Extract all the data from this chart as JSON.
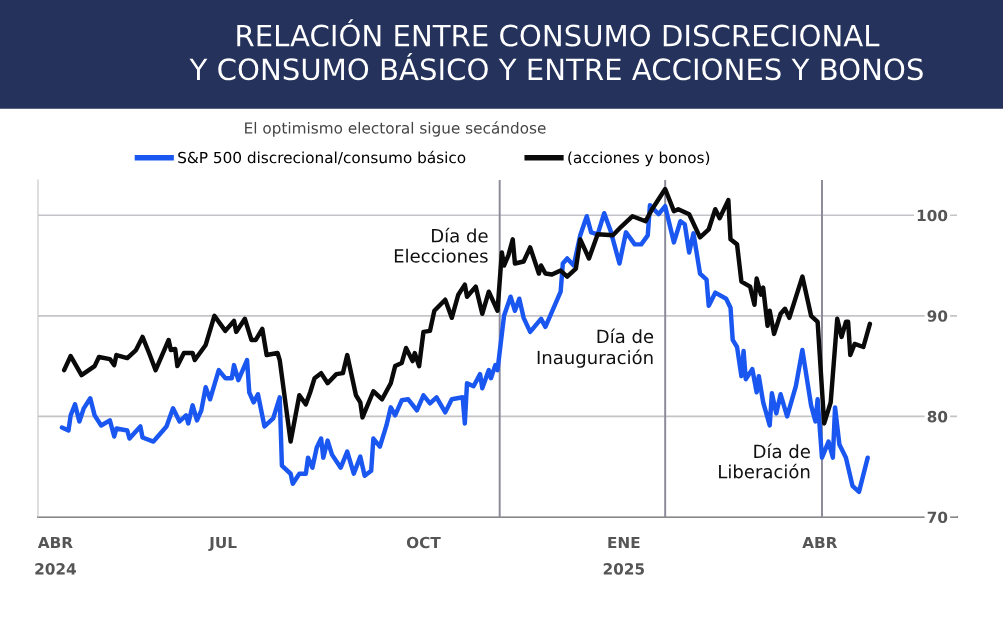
{
  "chart_data": {
    "type": "line",
    "title": "RELACIÓN ENTRE CONSUMO DISCRECIONAL\nY CONSUMO BÁSICO Y ENTRE ACCIONES Y BONOS",
    "subtitle": "El optimismo electoral sigue secándose",
    "series": [
      {
        "name": "S&P 500 discrecional/consumo básico",
        "color": "#1a56f0",
        "x": [
          "2024-04-18",
          "2024-04-21",
          "2024-04-22",
          "2024-04-24",
          "2024-04-26",
          "2024-04-28",
          "2024-05-01",
          "2024-05-03",
          "2024-05-06",
          "2024-05-10",
          "2024-05-12",
          "2024-05-13",
          "2024-05-18",
          "2024-05-19",
          "2024-05-24",
          "2024-05-25",
          "2024-05-30",
          "2024-06-05",
          "2024-06-08",
          "2024-06-11",
          "2024-06-14",
          "2024-06-15",
          "2024-06-17",
          "2024-06-19",
          "2024-06-21",
          "2024-06-23",
          "2024-06-25",
          "2024-06-29",
          "2024-07-02",
          "2024-07-05",
          "2024-07-06",
          "2024-07-08",
          "2024-07-12",
          "2024-07-13",
          "2024-07-15",
          "2024-07-17",
          "2024-07-20",
          "2024-07-24",
          "2024-07-27",
          "2024-07-28",
          "2024-08-01",
          "2024-08-02",
          "2024-08-05",
          "2024-08-08",
          "2024-08-09",
          "2024-08-11",
          "2024-08-13",
          "2024-08-15",
          "2024-08-16",
          "2024-08-18",
          "2024-08-20",
          "2024-08-24",
          "2024-08-27",
          "2024-08-30",
          "2024-09-02",
          "2024-09-04",
          "2024-09-07",
          "2024-09-08",
          "2024-09-11",
          "2024-09-14",
          "2024-09-16",
          "2024-09-18",
          "2024-09-21",
          "2024-09-24",
          "2024-09-28",
          "2024-10-01",
          "2024-10-04",
          "2024-10-07",
          "2024-10-11",
          "2024-10-14",
          "2024-10-19",
          "2024-10-20",
          "2024-10-21",
          "2024-10-24",
          "2024-10-27",
          "2024-10-28",
          "2024-10-31",
          "2024-11-01",
          "2024-11-03",
          "2024-11-04",
          "2024-11-07",
          "2024-11-10",
          "2024-11-12",
          "2024-11-14",
          "2024-11-16",
          "2024-11-19",
          "2024-11-24",
          "2024-11-26",
          "2024-12-03",
          "2024-12-04",
          "2024-12-06",
          "2024-12-09",
          "2024-12-12",
          "2024-12-15",
          "2024-12-17",
          "2024-12-20",
          "2024-12-23",
          "2024-12-26",
          "2024-12-30",
          "2025-01-02",
          "2025-01-06",
          "2025-01-09",
          "2025-01-12",
          "2025-01-13",
          "2025-01-17",
          "2025-01-20",
          "2025-01-24",
          "2025-01-27",
          "2025-01-29",
          "2025-01-31",
          "2025-02-02",
          "2025-02-05",
          "2025-02-08",
          "2025-02-09",
          "2025-02-12",
          "2025-02-17",
          "2025-02-19",
          "2025-02-20",
          "2025-02-22",
          "2025-02-24",
          "2025-02-25",
          "2025-02-26",
          "2025-03-01",
          "2025-03-03",
          "2025-03-04",
          "2025-03-06",
          "2025-03-09",
          "2025-03-10",
          "2025-03-12",
          "2025-03-14",
          "2025-03-17",
          "2025-03-21",
          "2025-03-24",
          "2025-03-28",
          "2025-03-30",
          "2025-03-31",
          "2025-04-02",
          "2025-04-05",
          "2025-04-07",
          "2025-04-08",
          "2025-04-10",
          "2025-04-13",
          "2025-04-16",
          "2025-04-19",
          "2025-04-23"
        ],
        "values": [
          78.9,
          78.6,
          80.1,
          81.2,
          79.5,
          80.8,
          81.8,
          80.1,
          79.1,
          79.6,
          78.0,
          78.8,
          78.6,
          77.8,
          79.0,
          77.9,
          77.5,
          79.0,
          80.8,
          79.5,
          80.1,
          79.3,
          81.1,
          79.6,
          80.6,
          82.9,
          81.7,
          84.6,
          83.8,
          83.8,
          85.1,
          83.6,
          85.6,
          82.4,
          81.4,
          82.2,
          79.0,
          79.8,
          81.9,
          75.1,
          74.3,
          73.3,
          74.3,
          74.3,
          75.9,
          74.9,
          76.9,
          77.8,
          75.9,
          77.6,
          76.2,
          74.9,
          76.5,
          74.3,
          76.0,
          74.1,
          74.6,
          77.8,
          77.0,
          79.1,
          80.9,
          80.1,
          81.6,
          81.7,
          80.6,
          82.1,
          81.3,
          81.9,
          80.4,
          81.7,
          81.9,
          79.3,
          83.3,
          83.0,
          84.2,
          82.8,
          84.6,
          83.8,
          85.1,
          84.6,
          90.0,
          91.9,
          90.5,
          91.7,
          89.8,
          88.4,
          89.7,
          88.9,
          92.4,
          95.2,
          95.7,
          95.0,
          98.0,
          99.9,
          98.3,
          98.1,
          100.2,
          98.4,
          95.2,
          98.3,
          97.1,
          97.1,
          98.0,
          101.0,
          100.1,
          100.9,
          97.3,
          99.4,
          99.1,
          96.3,
          98.2,
          94.2,
          93.6,
          91.0,
          92.3,
          91.7,
          90.8,
          87.6,
          86.9,
          84.0,
          86.5,
          83.7,
          84.7,
          82.4,
          84.0,
          81.4,
          79.1,
          82.3,
          80.3,
          82.2,
          80.0,
          83.0,
          86.6,
          81.1,
          79.5,
          81.7,
          75.9,
          77.5,
          75.9,
          80.9,
          77.2,
          75.9,
          73.1,
          72.5,
          75.9
        ]
      },
      {
        "name": "(acciones y bonos)",
        "color": "#0a0a0a",
        "x": [
          "2024-04-19",
          "2024-04-22",
          "2024-04-27",
          "2024-05-03",
          "2024-05-05",
          "2024-05-10",
          "2024-05-12",
          "2024-05-13",
          "2024-05-18",
          "2024-05-22",
          "2024-05-25",
          "2024-05-28",
          "2024-05-31",
          "2024-06-02",
          "2024-06-06",
          "2024-06-07",
          "2024-06-09",
          "2024-06-10",
          "2024-06-13",
          "2024-06-17",
          "2024-06-18",
          "2024-06-23",
          "2024-06-27",
          "2024-07-02",
          "2024-07-06",
          "2024-07-07",
          "2024-07-11",
          "2024-07-14",
          "2024-07-16",
          "2024-07-19",
          "2024-07-21",
          "2024-07-26",
          "2024-07-27",
          "2024-08-01",
          "2024-08-05",
          "2024-08-08",
          "2024-08-10",
          "2024-08-12",
          "2024-08-15",
          "2024-08-18",
          "2024-08-22",
          "2024-08-25",
          "2024-08-27",
          "2024-08-31",
          "2024-09-02",
          "2024-09-03",
          "2024-09-08",
          "2024-09-12",
          "2024-09-16",
          "2024-09-18",
          "2024-09-21",
          "2024-09-23",
          "2024-09-26",
          "2024-09-27",
          "2024-09-29",
          "2024-10-01",
          "2024-10-04",
          "2024-10-06",
          "2024-10-11",
          "2024-10-14",
          "2024-10-17",
          "2024-10-20",
          "2024-10-21",
          "2024-10-25",
          "2024-10-28",
          "2024-10-31",
          "2024-11-04",
          "2024-11-06",
          "2024-11-07",
          "2024-11-09",
          "2024-11-11",
          "2024-11-12",
          "2024-11-16",
          "2024-11-19",
          "2024-11-23",
          "2024-11-24",
          "2024-11-26",
          "2024-11-29",
          "2024-12-03",
          "2024-12-06",
          "2024-12-10",
          "2024-12-12",
          "2024-12-16",
          "2024-12-20",
          "2024-12-27",
          "2024-12-31",
          "2025-01-05",
          "2025-01-11",
          "2025-01-14",
          "2025-01-20",
          "2025-01-24",
          "2025-01-26",
          "2025-01-31",
          "2025-02-05",
          "2025-02-09",
          "2025-02-12",
          "2025-02-14",
          "2025-02-18",
          "2025-02-19",
          "2025-02-22",
          "2025-02-24",
          "2025-02-28",
          "2025-03-02",
          "2025-03-03",
          "2025-03-05",
          "2025-03-06",
          "2025-03-08",
          "2025-03-09",
          "2025-03-11",
          "2025-03-14",
          "2025-03-16",
          "2025-03-18",
          "2025-03-24",
          "2025-03-28",
          "2025-03-31",
          "2025-04-03",
          "2025-04-06",
          "2025-04-09",
          "2025-04-11",
          "2025-04-13",
          "2025-04-14",
          "2025-04-15",
          "2025-04-17",
          "2025-04-21",
          "2025-04-24"
        ],
        "values": [
          84.6,
          86.0,
          84.1,
          85.0,
          85.9,
          85.7,
          85.1,
          86.1,
          85.8,
          86.6,
          87.9,
          86.3,
          84.6,
          85.6,
          87.6,
          86.6,
          86.7,
          85.0,
          86.3,
          86.3,
          85.6,
          87.1,
          90.0,
          88.5,
          89.5,
          88.4,
          89.7,
          87.6,
          87.6,
          88.7,
          86.1,
          86.3,
          85.6,
          77.5,
          82.1,
          81.2,
          82.4,
          83.8,
          84.3,
          83.3,
          84.2,
          84.3,
          86.1,
          82.1,
          81.4,
          79.9,
          82.5,
          81.7,
          83.3,
          85.0,
          85.3,
          86.8,
          85.5,
          86.3,
          85.0,
          88.4,
          88.5,
          90.5,
          91.6,
          89.8,
          92.1,
          93.1,
          91.9,
          92.9,
          90.2,
          92.4,
          90.5,
          96.3,
          95.0,
          96.0,
          97.6,
          95.2,
          95.4,
          96.8,
          94.2,
          95.0,
          94.2,
          94.1,
          94.5,
          93.9,
          94.7,
          97.6,
          95.7,
          98.1,
          98.0,
          98.9,
          99.9,
          99.4,
          100.6,
          102.6,
          100.4,
          100.6,
          100.1,
          97.8,
          98.6,
          100.6,
          99.7,
          101.5,
          97.6,
          97.1,
          93.4,
          92.9,
          91.1,
          93.7,
          92.1,
          92.8,
          89.0,
          90.5,
          88.2,
          90.2,
          90.7,
          89.8,
          93.9,
          90.0,
          89.4,
          79.3,
          81.4,
          89.7,
          87.9,
          89.4,
          89.4,
          86.1,
          87.2,
          86.9,
          89.2
        ]
      }
    ],
    "xlim": [
      "2024-04-07",
      "2025-06-03"
    ],
    "xticks": [
      {
        "value": "2024-04-15",
        "label": "ABR\n2024"
      },
      {
        "value": "2024-07-01",
        "label": "JUL"
      },
      {
        "value": "2024-10-01",
        "label": "OCT"
      },
      {
        "value": "2025-01-01",
        "label": "ENE\n2025"
      },
      {
        "value": "2025-04-01",
        "label": "ABR"
      }
    ],
    "ylim": [
      70,
      103.5
    ],
    "yticks": [
      70,
      80,
      90,
      100
    ],
    "grid": "y",
    "legend": "top",
    "ref_lines": [
      {
        "axis": "x",
        "value": "2024-11-05",
        "label": "Día de\nElecciones"
      },
      {
        "axis": "x",
        "value": "2025-01-20",
        "label": "Día de\nInauguración"
      },
      {
        "axis": "x",
        "value": "2025-04-02",
        "label": "Día de\nLiberación"
      }
    ]
  }
}
